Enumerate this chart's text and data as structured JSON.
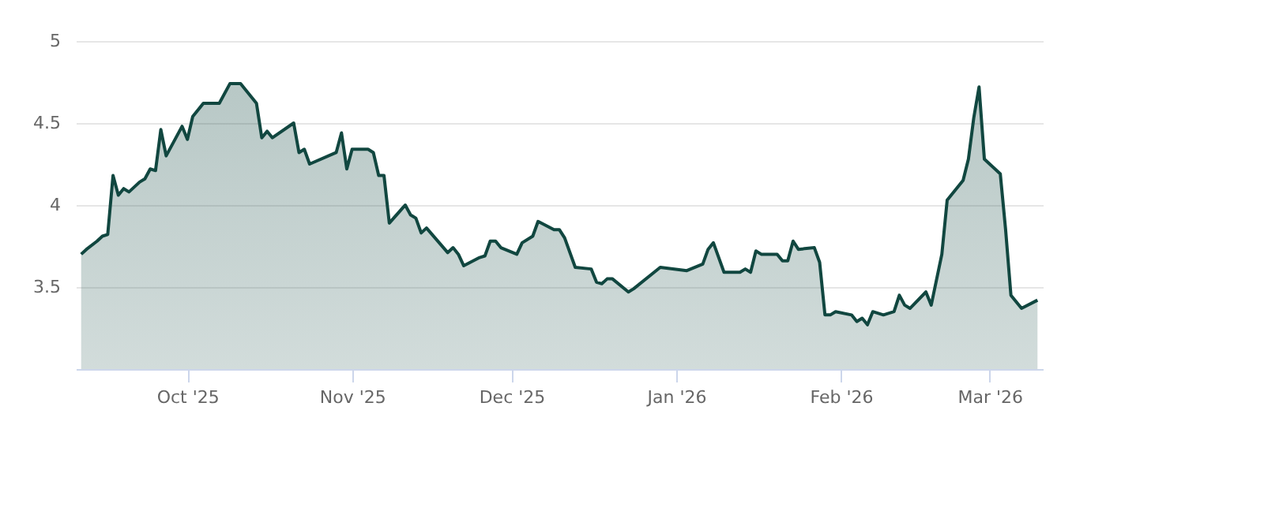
{
  "chart_data": {
    "type": "area",
    "xlim": [
      "2025-09-10",
      "2026-03-11"
    ],
    "ylim": [
      3,
      5
    ],
    "yticks": [
      3.5,
      4,
      4.5,
      5
    ],
    "xticks": [
      {
        "value": "2025-10-01",
        "label": "Oct '25"
      },
      {
        "value": "2025-11-01",
        "label": "Nov '25"
      },
      {
        "value": "2025-12-01",
        "label": "Dec '25"
      },
      {
        "value": "2026-01-01",
        "label": "Jan '26"
      },
      {
        "value": "2026-02-01",
        "label": "Feb '26"
      },
      {
        "value": "2026-03-01",
        "label": "Mar '26"
      }
    ],
    "grid": "y",
    "marker": "none",
    "line_style": "solid",
    "x": [
      "2025-09-11",
      "2025-09-12",
      "2025-09-14",
      "2025-09-15",
      "2025-09-16",
      "2025-09-17",
      "2025-09-18",
      "2025-09-19",
      "2025-09-20",
      "2025-09-22",
      "2025-09-23",
      "2025-09-24",
      "2025-09-25",
      "2025-09-26",
      "2025-09-27",
      "2025-09-30",
      "2025-10-01",
      "2025-10-02",
      "2025-10-04",
      "2025-10-07",
      "2025-10-09",
      "2025-10-11",
      "2025-10-14",
      "2025-10-15",
      "2025-10-16",
      "2025-10-17",
      "2025-10-21",
      "2025-10-22",
      "2025-10-23",
      "2025-10-24",
      "2025-10-29",
      "2025-10-30",
      "2025-10-31",
      "2025-11-01",
      "2025-11-04",
      "2025-11-05",
      "2025-11-06",
      "2025-11-07",
      "2025-11-08",
      "2025-11-11",
      "2025-11-12",
      "2025-11-13",
      "2025-11-14",
      "2025-11-15",
      "2025-11-19",
      "2025-11-20",
      "2025-11-21",
      "2025-11-22",
      "2025-11-25",
      "2025-11-26",
      "2025-11-27",
      "2025-11-28",
      "2025-11-29",
      "2025-12-02",
      "2025-12-03",
      "2025-12-05",
      "2025-12-06",
      "2025-12-09",
      "2025-12-10",
      "2025-12-11",
      "2025-12-13",
      "2025-12-16",
      "2025-12-17",
      "2025-12-18",
      "2025-12-19",
      "2025-12-20",
      "2025-12-23",
      "2025-12-24",
      "2025-12-29",
      "2026-01-03",
      "2026-01-06",
      "2026-01-07",
      "2026-01-08",
      "2026-01-10",
      "2026-01-13",
      "2026-01-14",
      "2026-01-15",
      "2026-01-16",
      "2026-01-17",
      "2026-01-20",
      "2026-01-21",
      "2026-01-22",
      "2026-01-23",
      "2026-01-24",
      "2026-01-27",
      "2026-01-28",
      "2026-01-29",
      "2026-01-30",
      "2026-01-31",
      "2026-02-03",
      "2026-02-04",
      "2026-02-05",
      "2026-02-06",
      "2026-02-07",
      "2026-02-09",
      "2026-02-11",
      "2026-02-12",
      "2026-02-13",
      "2026-02-14",
      "2026-02-17",
      "2026-02-18",
      "2026-02-20",
      "2026-02-21",
      "2026-02-24",
      "2026-02-25",
      "2026-02-26",
      "2026-02-27",
      "2026-02-28",
      "2026-03-03",
      "2026-03-04",
      "2026-03-05",
      "2026-03-07",
      "2026-03-10"
    ],
    "series": [
      {
        "color": "#114740",
        "values": [
          3.7,
          3.73,
          3.78,
          3.81,
          3.82,
          4.18,
          4.06,
          4.1,
          4.08,
          4.14,
          4.16,
          4.22,
          4.21,
          4.46,
          4.3,
          4.48,
          4.4,
          4.54,
          4.62,
          4.62,
          4.74,
          4.74,
          4.62,
          4.41,
          4.45,
          4.41,
          4.5,
          4.32,
          4.34,
          4.25,
          4.32,
          4.44,
          4.22,
          4.34,
          4.34,
          4.32,
          4.18,
          4.18,
          3.89,
          4.0,
          3.94,
          3.92,
          3.83,
          3.86,
          3.71,
          3.74,
          3.7,
          3.63,
          3.68,
          3.69,
          3.78,
          3.78,
          3.74,
          3.7,
          3.77,
          3.81,
          3.9,
          3.85,
          3.85,
          3.8,
          3.62,
          3.61,
          3.53,
          3.52,
          3.55,
          3.55,
          3.47,
          3.49,
          3.62,
          3.6,
          3.64,
          3.73,
          3.77,
          3.59,
          3.59,
          3.61,
          3.59,
          3.72,
          3.7,
          3.7,
          3.66,
          3.66,
          3.78,
          3.73,
          3.74,
          3.65,
          3.33,
          3.33,
          3.35,
          3.33,
          3.29,
          3.31,
          3.27,
          3.35,
          3.33,
          3.35,
          3.45,
          3.39,
          3.37,
          3.47,
          3.39,
          3.7,
          4.03,
          4.15,
          4.28,
          4.53,
          4.72,
          4.28,
          4.19,
          3.85,
          3.45,
          3.37,
          3.42
        ]
      }
    ]
  }
}
